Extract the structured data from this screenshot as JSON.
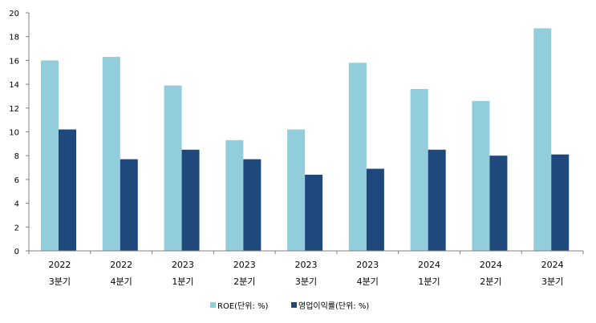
{
  "chart_data": {
    "type": "bar",
    "categories": [
      {
        "year": "2022",
        "quarter": "3분기"
      },
      {
        "year": "2022",
        "quarter": "4분기"
      },
      {
        "year": "2023",
        "quarter": "1분기"
      },
      {
        "year": "2023",
        "quarter": "2분기"
      },
      {
        "year": "2023",
        "quarter": "3분기"
      },
      {
        "year": "2023",
        "quarter": "4분기"
      },
      {
        "year": "2024",
        "quarter": "1분기"
      },
      {
        "year": "2024",
        "quarter": "2분기"
      },
      {
        "year": "2024",
        "quarter": "3분기"
      }
    ],
    "series": [
      {
        "name": "ROE(단위: %)",
        "color": "#92cddc",
        "values": [
          16.0,
          16.3,
          13.9,
          9.3,
          10.2,
          15.8,
          13.6,
          12.6,
          18.7
        ]
      },
      {
        "name": "영업이익률(단위: %)",
        "color": "#1f497d",
        "values": [
          10.2,
          7.7,
          8.5,
          7.7,
          6.4,
          6.9,
          8.5,
          8.0,
          8.1
        ]
      }
    ],
    "ylim": [
      0,
      20
    ],
    "yticks": [
      "0",
      "2",
      "4",
      "6",
      "8",
      "10",
      "12",
      "14",
      "16",
      "18",
      "20"
    ],
    "grid": false,
    "legend": "bottom",
    "title": "",
    "xlabel": "",
    "ylabel": ""
  }
}
